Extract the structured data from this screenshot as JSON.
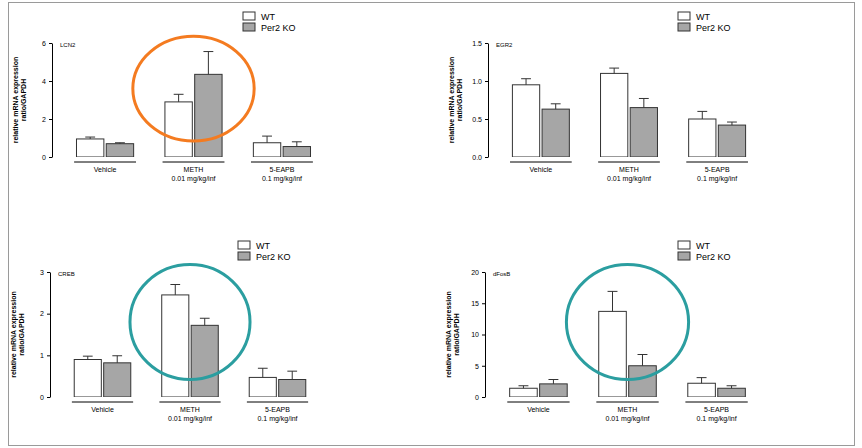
{
  "chart_data": [
    {
      "type": "bar",
      "title": "LCN2",
      "ylabel": "relative mRNA expression\nratio/GAPDH",
      "categories": [
        "Vehicle",
        "METH\n0.01 mg/kg/inf",
        "5-EAPB\n0.1 mg/kg/inf"
      ],
      "series": [
        {
          "name": "WT",
          "color": "#ffffff",
          "values": [
            0.95,
            2.9,
            0.75
          ],
          "errors": [
            0.1,
            0.4,
            0.35
          ]
        },
        {
          "name": "Per2 KO",
          "color": "#a6a6a6",
          "values": [
            0.7,
            4.35,
            0.55
          ],
          "errors": [
            0.05,
            1.2,
            0.25
          ]
        }
      ],
      "ylim": [
        0,
        6
      ],
      "yticks": [
        0,
        2,
        4,
        6
      ],
      "legend": "top-right"
    },
    {
      "type": "bar",
      "title": "EGR2",
      "ylabel": "relative mRNA expression\nratio/GAPDH",
      "categories": [
        "Vehicle",
        "METH\n0.01 mg/kg/inf",
        "5-EAPB\n0.1 mg/kg/inf"
      ],
      "series": [
        {
          "name": "WT",
          "color": "#ffffff",
          "values": [
            0.95,
            1.1,
            0.5
          ],
          "errors": [
            0.08,
            0.07,
            0.1
          ]
        },
        {
          "name": "Per2 KO",
          "color": "#a6a6a6",
          "values": [
            0.63,
            0.65,
            0.42
          ],
          "errors": [
            0.07,
            0.12,
            0.04
          ]
        }
      ],
      "ylim": [
        0,
        1.5
      ],
      "yticks": [
        {
          "value": 0,
          "label": "0.0"
        },
        {
          "value": 0.5,
          "label": "0.5"
        },
        {
          "value": 1,
          "label": "1.0"
        },
        {
          "value": 1.5,
          "label": "1.5"
        }
      ],
      "legend": "top-right"
    },
    {
      "type": "bar",
      "title": "CREB",
      "ylabel": "relative mRNA expression\nratio/GAPDH",
      "categories": [
        "Vehicle",
        "METH\n0.01 mg/kg/inf",
        "5-EAPB\n0.1 mg/kg/inf"
      ],
      "series": [
        {
          "name": "WT",
          "color": "#ffffff",
          "values": [
            0.9,
            2.45,
            0.47
          ],
          "errors": [
            0.08,
            0.25,
            0.22
          ]
        },
        {
          "name": "Per2 KO",
          "color": "#a6a6a6",
          "values": [
            0.82,
            1.72,
            0.42
          ],
          "errors": [
            0.17,
            0.17,
            0.2
          ]
        }
      ],
      "ylim": [
        0,
        3
      ],
      "yticks": [
        0,
        1,
        2,
        3
      ],
      "legend": "top-right"
    },
    {
      "type": "bar",
      "title": "dFosB",
      "ylabel": "relative mRNA expression\nratio/GAPDH",
      "categories": [
        "Vehicle",
        "METH\n0.01 mg/kg/inf",
        "5-EAPB\n0.1 mg/kg/inf"
      ],
      "series": [
        {
          "name": "WT",
          "color": "#ffffff",
          "values": [
            1.4,
            13.7,
            2.2
          ],
          "errors": [
            0.4,
            3.2,
            0.9
          ]
        },
        {
          "name": "Per2 KO",
          "color": "#a6a6a6",
          "values": [
            2.1,
            5.0,
            1.4
          ],
          "errors": [
            0.7,
            1.8,
            0.4
          ]
        }
      ],
      "ylim": [
        0,
        20
      ],
      "yticks": [
        0,
        5,
        10,
        15,
        20
      ],
      "legend": "top-right"
    }
  ]
}
